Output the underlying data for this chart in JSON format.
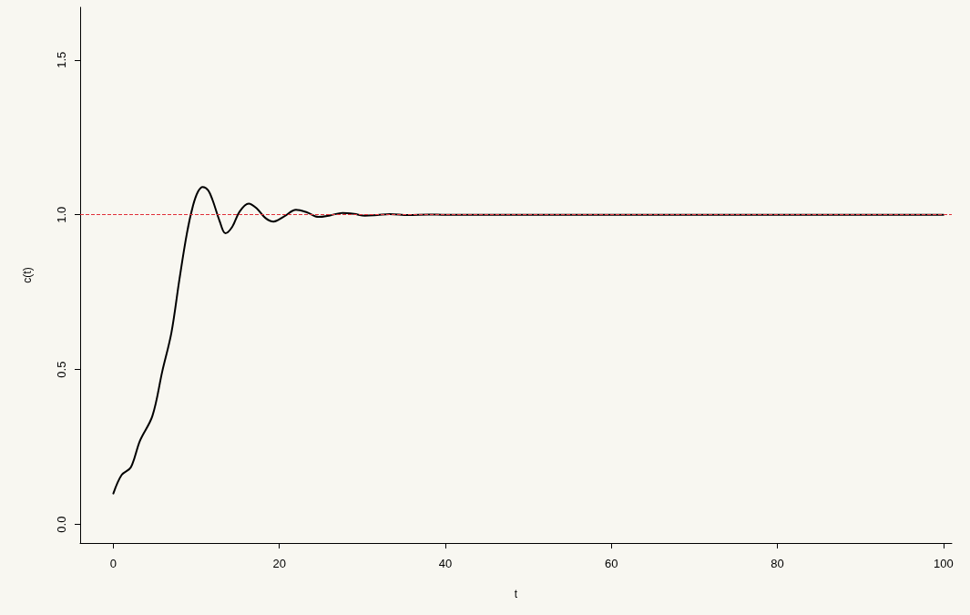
{
  "chart_data": {
    "type": "line",
    "xlabel": "t",
    "ylabel": "c(t)",
    "xlim": [
      -4,
      101
    ],
    "ylim": [
      -0.06,
      1.67
    ],
    "xticks": [
      0,
      20,
      40,
      60,
      80,
      100
    ],
    "yticks": [
      {
        "value": 0,
        "label": "0.0"
      },
      0.5,
      {
        "value": 1,
        "label": "1.0"
      },
      1.5
    ],
    "grid": false,
    "marker": "none",
    "line_style": "solid",
    "series": [
      {
        "color": "#000000",
        "x": [
          0,
          1,
          2.1,
          3.2,
          4.7,
          5.9,
          7,
          7.95,
          8.86,
          9.6,
          10.2,
          10.76,
          11.4,
          11.96,
          12.8,
          13.5,
          14.3,
          15.2,
          16.3,
          17.3,
          18.3,
          19.3,
          20.6,
          22,
          23.3,
          24.7,
          26.1,
          27.6,
          29,
          30.3,
          31.8,
          33.3,
          35.5,
          38,
          40,
          45,
          50,
          60,
          70,
          80,
          90,
          100
        ],
        "values": [
          0.1,
          0.16,
          0.184,
          0.27,
          0.35,
          0.495,
          0.62,
          0.79,
          0.94,
          1.03,
          1.075,
          1.09,
          1.08,
          1.047,
          0.98,
          0.94,
          0.96,
          1.01,
          1.036,
          1.02,
          0.99,
          0.978,
          0.995,
          1.016,
          1.008,
          0.993,
          0.998,
          1.006,
          1.003,
          0.997,
          0.999,
          1.002,
          0.999,
          1.001,
          1,
          1,
          1,
          1,
          1,
          1,
          1,
          1
        ]
      }
    ],
    "ref_lines": [
      {
        "axis": "y",
        "value": 1,
        "color": "#e0303a",
        "line_style": "dashed"
      }
    ]
  }
}
